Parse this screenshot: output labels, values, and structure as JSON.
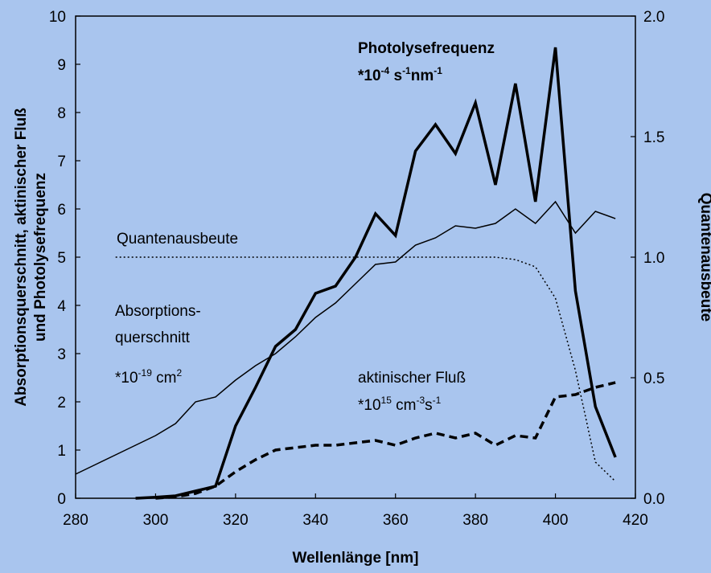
{
  "chart_data": {
    "type": "line",
    "x_label": "Wellenlänge [nm]",
    "y_label": [
      "Absorptionsquerschnitt, aktinischer Fluß",
      "und Photolysefrequenz"
    ],
    "y2_label": "Quantenausbeute",
    "x": [
      280,
      285,
      290,
      295,
      300,
      305,
      310,
      315,
      320,
      325,
      330,
      335,
      340,
      345,
      350,
      355,
      360,
      365,
      370,
      375,
      380,
      385,
      390,
      395,
      400,
      405,
      410,
      415
    ],
    "series": [
      {
        "name": "Photolysefrequenz",
        "color": "#000000",
        "style": "solid",
        "width": 3.5,
        "values": [
          null,
          null,
          null,
          0,
          0.02,
          0.05,
          0.15,
          0.25,
          1.5,
          2.3,
          3.15,
          3.5,
          4.25,
          4.4,
          5.0,
          5.9,
          5.45,
          7.2,
          7.75,
          7.15,
          8.2,
          6.5,
          8.6,
          6.15,
          9.35,
          4.3,
          1.9,
          0.85
        ]
      },
      {
        "name": "Absorptionsquerschnitt",
        "color": "#000000",
        "style": "solid",
        "width": 1.5,
        "values": [
          0.5,
          0.7,
          0.9,
          1.1,
          1.3,
          1.55,
          2.0,
          2.1,
          2.45,
          2.75,
          3.0,
          3.35,
          3.75,
          4.05,
          4.45,
          4.85,
          4.9,
          5.25,
          5.4,
          5.65,
          5.6,
          5.7,
          6.0,
          5.7,
          6.15,
          5.5,
          5.95,
          5.8
        ]
      },
      {
        "name": "Quantenausbeute",
        "color": "#000000",
        "style": "dotted",
        "width": 1.5,
        "axis": "y2",
        "values": [
          null,
          null,
          1.0,
          1.0,
          1.0,
          1.0,
          1.0,
          1.0,
          1.0,
          1.0,
          1.0,
          1.0,
          1.0,
          1.0,
          1.0,
          1.0,
          1.0,
          1.0,
          1.0,
          1.0,
          1.0,
          1.0,
          0.99,
          0.96,
          0.83,
          0.53,
          0.15,
          0.07
        ]
      },
      {
        "name": "aktinischer Fluß",
        "color": "#000000",
        "style": "dashed",
        "width": 3.5,
        "values": [
          null,
          null,
          null,
          null,
          0,
          0.03,
          0.1,
          0.25,
          0.55,
          0.8,
          1.0,
          1.05,
          1.1,
          1.1,
          1.15,
          1.2,
          1.1,
          1.25,
          1.35,
          1.25,
          1.35,
          1.1,
          1.3,
          1.25,
          2.1,
          2.15,
          2.3,
          2.4
        ]
      }
    ],
    "annotations": [
      {
        "label": "Photolysefrequenz",
        "unit": [
          "*10",
          "-4",
          " s",
          "-1",
          "nm",
          "-1"
        ]
      },
      {
        "label": "Quantenausbeute"
      },
      {
        "label": [
          "Absorptions-",
          "querschnitt"
        ],
        "unit": [
          "*10",
          "-19",
          " cm",
          "2"
        ]
      },
      {
        "label": "aktinischer Fluß",
        "unit": [
          "*10",
          "15",
          " cm",
          "-3",
          "s",
          "-1"
        ]
      }
    ],
    "xlim": [
      280,
      420
    ],
    "xticks": [
      280,
      300,
      320,
      340,
      360,
      380,
      400,
      420
    ],
    "ylim": [
      0,
      10
    ],
    "yticks": [
      0,
      1,
      2,
      3,
      4,
      5,
      6,
      7,
      8,
      9,
      10
    ],
    "y2lim": [
      0,
      2
    ],
    "y2ticks": [
      {
        "value": 0,
        "label": "0.0"
      },
      0.5,
      {
        "value": 1,
        "label": "1.0"
      },
      1.5,
      {
        "value": 2,
        "label": "2.0"
      }
    ],
    "background": "#a9c5ee"
  }
}
